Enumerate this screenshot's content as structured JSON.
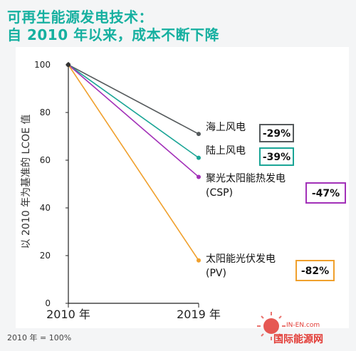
{
  "title": [
    "可再生能源发电技术：",
    "自  2010  年以来，成本不断下降"
  ],
  "footnote": "2010 年 = 100%",
  "watermark": {
    "url": "IN-EN.com",
    "name": "国际能源网"
  },
  "chart_data": {
    "type": "line",
    "title": "可再生能源发电技术：自 2010 年以来，成本不断下降",
    "ylabel": "以 2010 年为基准的 LCOE 值",
    "xlabel": "",
    "categories": [
      "2010 年",
      "2019 年"
    ],
    "ylim": [
      0,
      100
    ],
    "yticks": [
      0,
      20,
      40,
      60,
      80,
      100
    ],
    "grid": false,
    "series": [
      {
        "name": "海上风电",
        "values": [
          100,
          71
        ],
        "change": "-29%",
        "color": "#555a5c"
      },
      {
        "name": "陆上风电",
        "values": [
          100,
          61
        ],
        "change": "-39%",
        "color": "#1aa596"
      },
      {
        "name": "聚光太阳能热发电\n(CSP)",
        "values": [
          100,
          53
        ],
        "change": "-47%",
        "color": "#a230b8"
      },
      {
        "name": "太阳能光伏发电\n(PV)",
        "values": [
          100,
          18
        ],
        "change": "-82%",
        "color": "#f0a02c"
      }
    ]
  }
}
